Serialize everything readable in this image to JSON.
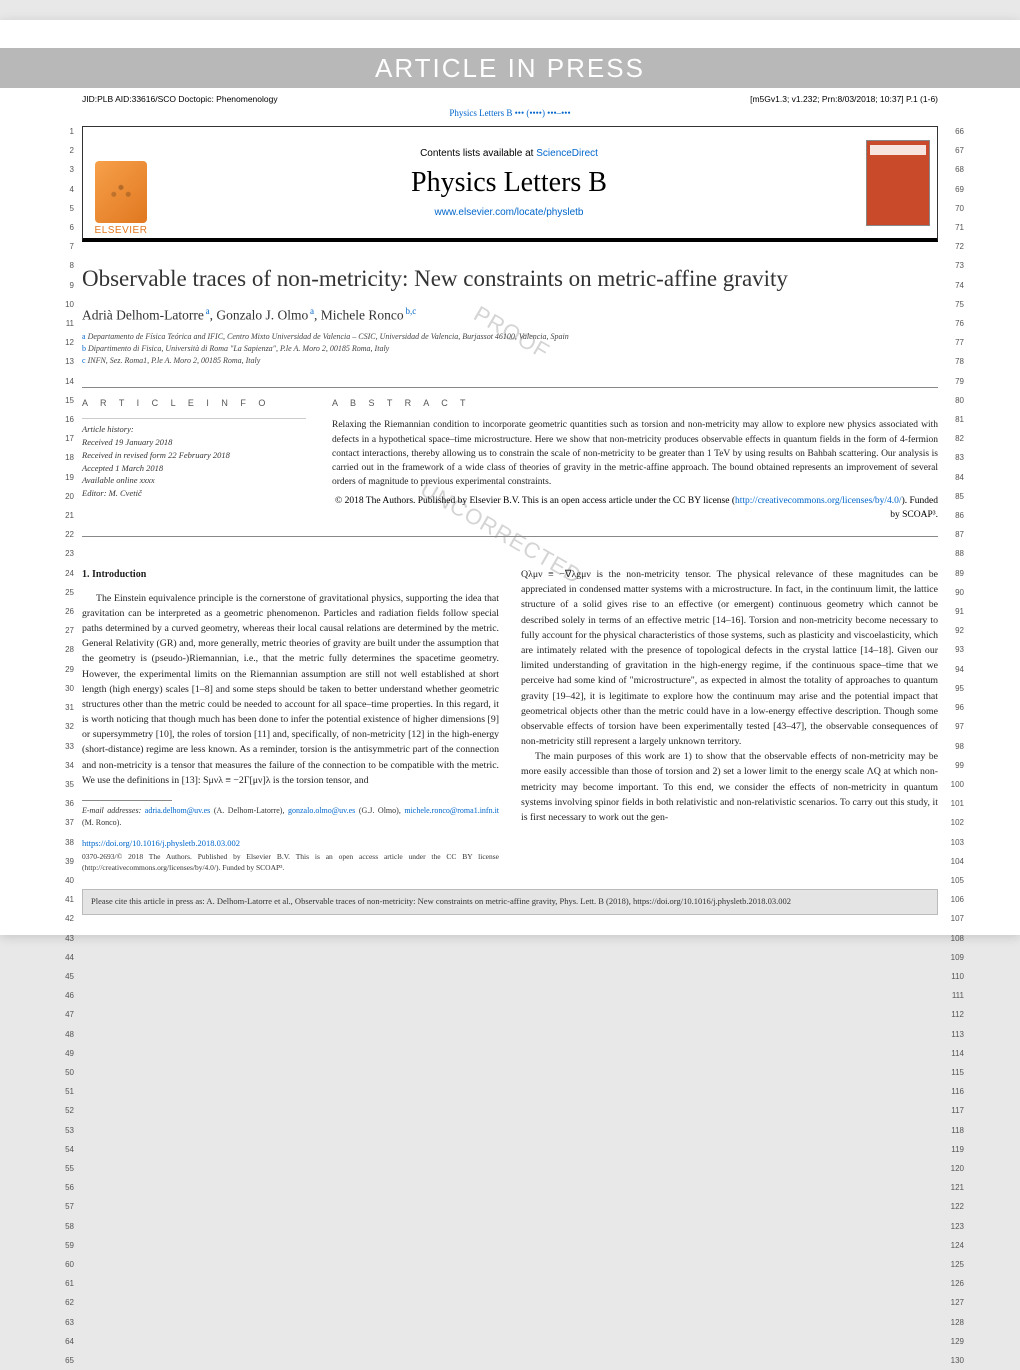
{
  "watermark_top": "ARTICLE IN PRESS",
  "header_left": "JID:PLB  AID:33616/SCO  Doctopic: Phenomenology",
  "header_right": "[m5Gv1.3; v1.232; Prn:8/03/2018; 10:37] P.1 (1-6)",
  "journal_cite_line": "Physics Letters B ••• (••••) •••–•••",
  "masthead": {
    "elsevier": "ELSEVIER",
    "contents_line_pre": "Contents lists available at ",
    "contents_link": "ScienceDirect",
    "journal_title": "Physics Letters B",
    "journal_url": "www.elsevier.com/locate/physletb",
    "cover_label": "PHYSICS LETTERS B"
  },
  "title": "Observable traces of non-metricity: New constraints on metric-affine gravity",
  "authors": [
    {
      "name": "Adrià Delhom-Latorre",
      "sup": "a"
    },
    {
      "name": "Gonzalo J. Olmo",
      "sup": "a"
    },
    {
      "name": "Michele Ronco",
      "sup": "b,c"
    }
  ],
  "affiliations": [
    {
      "label": "a",
      "text": "Departamento de Física Teórica and IFIC, Centro Mixto Universidad de Valencia – CSIC, Universidad de Valencia, Burjassot 46100, Valencia, Spain"
    },
    {
      "label": "b",
      "text": "Dipartimento di Fisica, Università di Roma \"La Sapienza\", P.le A. Moro 2, 00185 Roma, Italy"
    },
    {
      "label": "c",
      "text": "INFN, Sez. Roma1, P.le A. Moro 2, 00185 Roma, Italy"
    }
  ],
  "info_head": "A R T I C L E   I N F O",
  "abs_head": "A B S T R A C T",
  "article_info": {
    "history_label": "Article history:",
    "received": "Received 19 January 2018",
    "revised": "Received in revised form 22 February 2018",
    "accepted": "Accepted 1 March 2018",
    "online": "Available online xxxx",
    "editor": "Editor: M. Cvetič"
  },
  "abstract": "Relaxing the Riemannian condition to incorporate geometric quantities such as torsion and non-metricity may allow to explore new physics associated with defects in a hypothetical space–time microstructure. Here we show that non-metricity produces observable effects in quantum fields in the form of 4-fermion contact interactions, thereby allowing us to constrain the scale of non-metricity to be greater than 1 TeV by using results on Bahbah scattering. Our analysis is carried out in the framework of a wide class of theories of gravity in the metric-affine approach. The bound obtained represents an improvement of several orders of magnitude to previous experimental constraints.",
  "abstract_copyright": "© 2018 The Authors. Published by Elsevier B.V. This is an open access article under the CC BY license (",
  "abstract_license_url": "http://creativecommons.org/licenses/by/4.0/",
  "abstract_copyright_tail": "). Funded by SCOAP³.",
  "section1_head": "1. Introduction",
  "col_left_p1": "The Einstein equivalence principle is the cornerstone of gravitational physics, supporting the idea that gravitation can be interpreted as a geometric phenomenon. Particles and radiation fields follow special paths determined by a curved geometry, whereas their local causal relations are determined by the metric. General Relativity (GR) and, more generally, metric theories of gravity are built under the assumption that the geometry is (pseudo-)Riemannian, i.e., that the metric fully determines the spacetime geometry. However, the experimental limits on the Riemannian assumption are still not well established at short length (high energy) scales [1–8] and some steps should be taken to better understand whether geometric structures other than the metric could be needed to account for all space–time properties. In this regard, it is worth noticing that though much has been done to infer the potential existence of higher dimensions [9] or supersymmetry [10], the roles of torsion [11] and, specifically, of non-metricity [12] in the high-energy (short-distance) regime are less known. As a reminder, torsion is the antisymmetric part of the connection and non-metricity is a tensor that measures the failure of the connection to be compatible with the metric. We use the definitions in [13]: Sμνλ ≡ −2Γ[μν]λ is the torsion tensor, and",
  "col_right_p1": "Qλμν ≡ −∇λgμν is the non-metricity tensor. The physical relevance of these magnitudes can be appreciated in condensed matter systems with a microstructure. In fact, in the continuum limit, the lattice structure of a solid gives rise to an effective (or emergent) continuous geometry which cannot be described solely in terms of an effective metric [14–16]. Torsion and non-metricity become necessary to fully account for the physical characteristics of those systems, such as plasticity and viscoelasticity, which are intimately related with the presence of topological defects in the crystal lattice [14–18]. Given our limited understanding of gravitation in the high-energy regime, if the continuous space–time that we perceive had some kind of \"microstructure\", as expected in almost the totality of approaches to quantum gravity [19–42], it is legitimate to explore how the continuum may arise and the potential impact that geometrical objects other than the metric could have in a low-energy effective description. Though some observable effects of torsion have been experimentally tested [43–47], the observable consequences of non-metricity still represent a largely unknown territory.",
  "col_right_p2": "The main purposes of this work are 1) to show that the observable effects of non-metricity may be more easily accessible than those of torsion and 2) set a lower limit to the energy scale ΛQ at which non-metricity may become important. To this end, we consider the effects of non-metricity in quantum systems involving spinor fields in both relativistic and non-relativistic scenarios. To carry out this study, it is first necessary to work out the gen-",
  "footnotes": {
    "email_label": "E-mail addresses:",
    "emails": [
      {
        "addr": "adria.delhom@uv.es",
        "who": "(A. Delhom-Latorre)"
      },
      {
        "addr": "gonzalo.olmo@uv.es",
        "who": "(G.J. Olmo)"
      },
      {
        "addr": "michele.ronco@roma1.infn.it",
        "who": "(M. Ronco)"
      }
    ]
  },
  "doi": "https://doi.org/10.1016/j.physletb.2018.03.002",
  "bottom_copyright": "0370-2693/© 2018 The Authors. Published by Elsevier B.V. This is an open access article under the CC BY license (http://creativecommons.org/licenses/by/4.0/). Funded by SCOAP³.",
  "cite_box": "Please cite this article in press as: A. Delhom-Latorre et al., Observable traces of non-metricity: New constraints on metric-affine gravity, Phys. Lett. B (2018), https://doi.org/10.1016/j.physletb.2018.03.002",
  "line_numbers": {
    "left_start": 1,
    "left_end": 65,
    "right_start": 66,
    "right_end": 130
  },
  "colors": {
    "link": "#0066cc",
    "watermark_bar": "#b8b8b8",
    "elsevier_orange": "#e07820",
    "cover_red": "#c94a2a",
    "proof_gray": "#d4d4d4"
  }
}
